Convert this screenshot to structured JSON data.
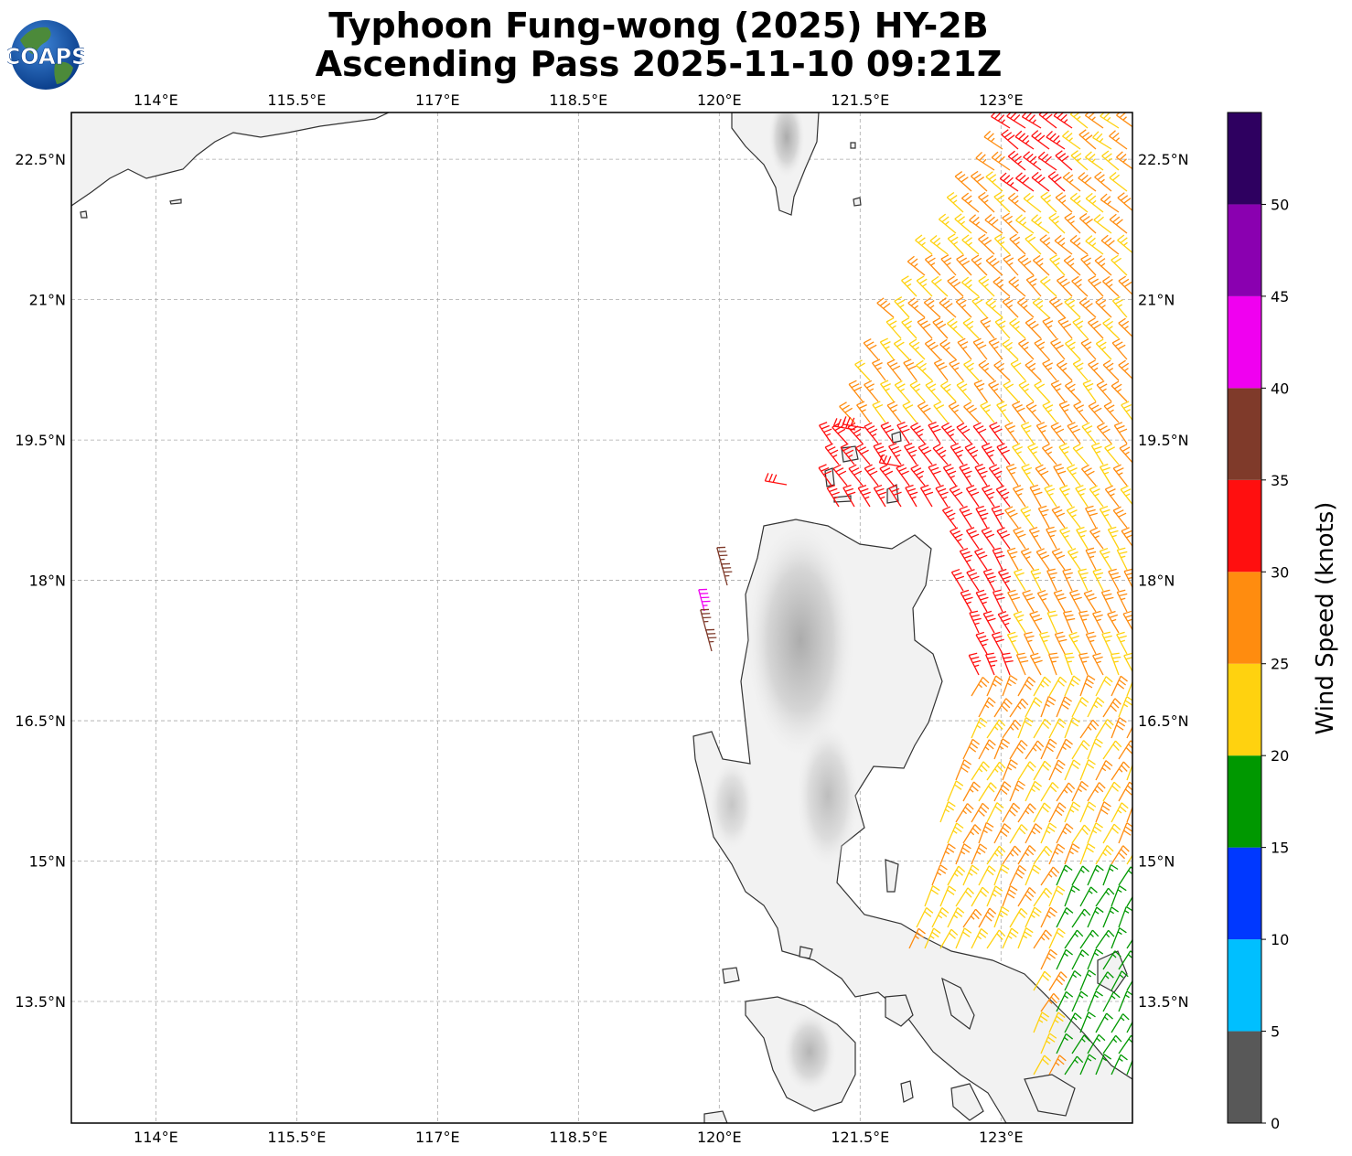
{
  "title": {
    "line1": "Typhoon Fung-wong (2025) HY-2B",
    "line2": "Ascending Pass 2025-11-10 09:21Z"
  },
  "logo": {
    "text": "COAPS",
    "icon": "globe-logo-icon"
  },
  "map": {
    "lon_range": [
      113.1,
      124.4
    ],
    "lat_range": [
      12.2,
      23.0
    ],
    "lon_ticks": [
      {
        "value": 114.0,
        "label": "114°E"
      },
      {
        "value": 115.5,
        "label": "115.5°E"
      },
      {
        "value": 117.0,
        "label": "117°E"
      },
      {
        "value": 118.5,
        "label": "118.5°E"
      },
      {
        "value": 120.0,
        "label": "120°E"
      },
      {
        "value": 121.5,
        "label": "121.5°E"
      },
      {
        "value": 123.0,
        "label": "123°E"
      }
    ],
    "lat_ticks": [
      {
        "value": 22.5,
        "label": "22.5°N"
      },
      {
        "value": 21.0,
        "label": "21°N"
      },
      {
        "value": 19.5,
        "label": "19.5°N"
      },
      {
        "value": 18.0,
        "label": "18°N"
      },
      {
        "value": 16.5,
        "label": "16.5°N"
      },
      {
        "value": 15.0,
        "label": "15°N"
      },
      {
        "value": 13.5,
        "label": "13.5°N"
      }
    ],
    "gridlines": true,
    "land_color": "#f2f2f2",
    "coast_color": "#333333"
  },
  "colorbar": {
    "label": "Wind Speed (knots)",
    "range": [
      0,
      55
    ],
    "ticks": [
      "0",
      "5",
      "10",
      "15",
      "20",
      "25",
      "30",
      "35",
      "40",
      "45",
      "50"
    ],
    "bins": [
      {
        "min": 0,
        "max": 5,
        "color": "#585858"
      },
      {
        "min": 5,
        "max": 10,
        "color": "#00bfff"
      },
      {
        "min": 10,
        "max": 15,
        "color": "#0038ff"
      },
      {
        "min": 15,
        "max": 20,
        "color": "#009800"
      },
      {
        "min": 20,
        "max": 25,
        "color": "#ffd20f"
      },
      {
        "min": 25,
        "max": 30,
        "color": "#ff8c0f"
      },
      {
        "min": 30,
        "max": 35,
        "color": "#ff0f0f"
      },
      {
        "min": 35,
        "max": 40,
        "color": "#7f3a2a"
      },
      {
        "min": 40,
        "max": 45,
        "color": "#f000f0"
      },
      {
        "min": 45,
        "max": 50,
        "color": "#8a00b0"
      },
      {
        "min": 50,
        "max": 55,
        "color": "#2e0060"
      }
    ]
  }
}
